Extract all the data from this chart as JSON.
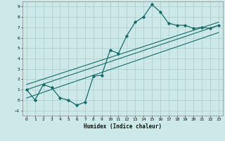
{
  "title": "",
  "xlabel": "Humidex (Indice chaleur)",
  "ylabel": "",
  "background_color": "#cce8e8",
  "grid_color": "#aacccc",
  "line_color": "#1a6b6b",
  "xlim": [
    -0.5,
    23.5
  ],
  "ylim": [
    -1.5,
    9.5
  ],
  "xticks": [
    0,
    1,
    2,
    3,
    4,
    5,
    6,
    7,
    8,
    9,
    10,
    11,
    12,
    13,
    14,
    15,
    16,
    17,
    18,
    19,
    20,
    21,
    22,
    23
  ],
  "yticks": [
    -1,
    0,
    1,
    2,
    3,
    4,
    5,
    6,
    7,
    8,
    9
  ],
  "curve1_x": [
    0,
    1,
    2,
    3,
    4,
    5,
    6,
    7,
    8,
    9,
    10,
    11,
    12,
    13,
    14,
    15,
    16,
    17,
    18,
    19,
    20,
    21,
    22,
    23
  ],
  "curve1_y": [
    1.0,
    0.0,
    1.5,
    1.2,
    0.2,
    0.0,
    -0.5,
    -0.2,
    2.3,
    2.4,
    4.8,
    4.5,
    6.2,
    7.5,
    8.0,
    9.2,
    8.5,
    7.4,
    7.2,
    7.2,
    6.9,
    7.0,
    6.9,
    7.2
  ],
  "line1_x": [
    0,
    23
  ],
  "line1_y": [
    1.0,
    7.2
  ],
  "line2_x": [
    0,
    23
  ],
  "line2_y": [
    1.5,
    7.5
  ],
  "line3_x": [
    0,
    23
  ],
  "line3_y": [
    0.2,
    6.5
  ]
}
